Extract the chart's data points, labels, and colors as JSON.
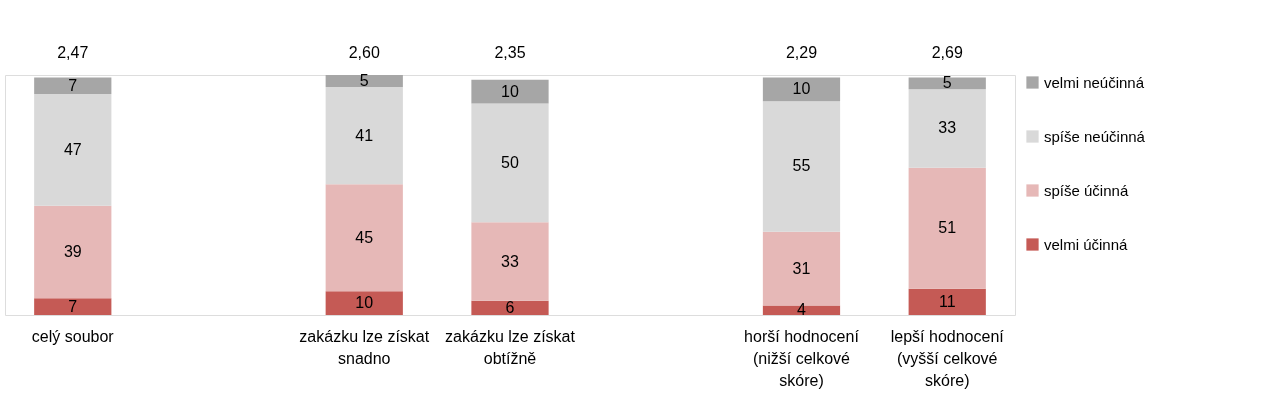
{
  "chart_data": {
    "type": "bar",
    "stacked": true,
    "data_labels": true,
    "legend": "right",
    "categories": [
      "celý soubor",
      null,
      "zakázku lze získat snadno",
      "zakázku lze získat obtížně",
      null,
      "horší hodnocení (nižší celkové skóre)",
      "lepší hodnocení (vyšší celkové skóre)"
    ],
    "series": [
      {
        "name": "velmi účinná",
        "color": "#c55a55",
        "values": [
          7,
          null,
          10,
          6,
          null,
          4,
          11
        ]
      },
      {
        "name": "spíše účinná",
        "color": "#e6b8b7",
        "values": [
          39,
          null,
          45,
          33,
          null,
          31,
          51
        ]
      },
      {
        "name": "spíše neúčinná",
        "color": "#d9d9d9",
        "values": [
          47,
          null,
          41,
          50,
          null,
          55,
          33
        ]
      },
      {
        "name": "velmi neúčinná",
        "color": "#a6a6a6",
        "values": [
          7,
          null,
          5,
          10,
          null,
          10,
          5
        ]
      }
    ],
    "annotations": [
      {
        "text": "2,47",
        "x": "celý soubor",
        "y": 100
      },
      {
        "text": "2,60",
        "x": "zakázku lze získat snadno",
        "y": 100
      },
      {
        "text": "2,35",
        "x": "zakázku lze získat obtížně",
        "y": 100
      },
      {
        "text": "2,29",
        "x": "horší hodnocení (nižší celkové skóre)",
        "y": 100
      },
      {
        "text": "2,69",
        "x": "lepší hodnocení (vyšší celkové skóre)",
        "y": 100
      }
    ]
  }
}
